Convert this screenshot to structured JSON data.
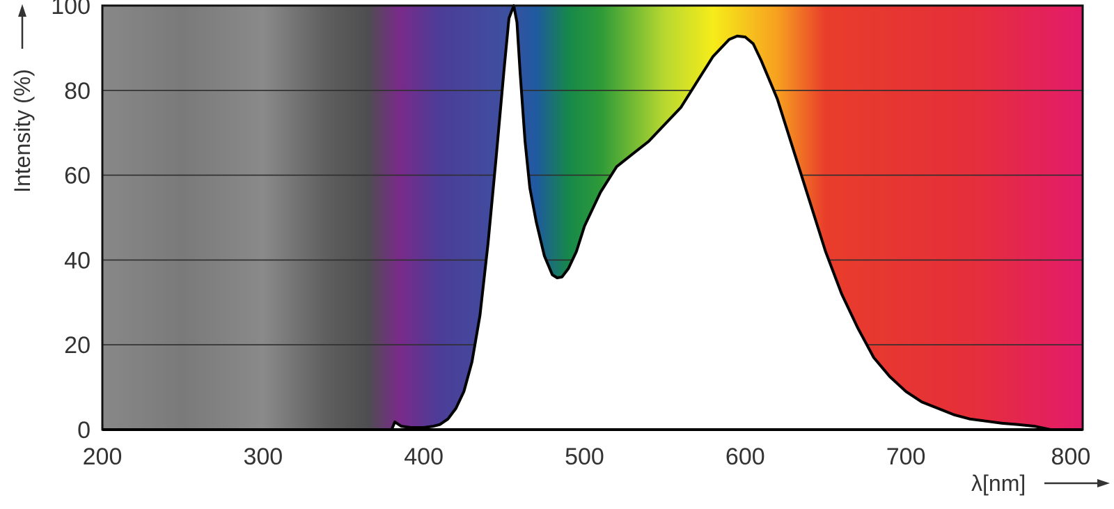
{
  "chart_data": {
    "type": "area",
    "title": "",
    "xlabel": "λ[nm]",
    "ylabel": "Intensity (%)",
    "xlim": [
      200,
      810
    ],
    "ylim": [
      0,
      100
    ],
    "x_ticks": [
      200,
      300,
      400,
      500,
      600,
      700,
      800
    ],
    "y_ticks": [
      0,
      20,
      40,
      60,
      80,
      100
    ],
    "grid": "horizontal",
    "legend": "none",
    "background": "visible-spectrum color band by wavelength",
    "spectrum_colors": [
      {
        "nm": 200,
        "color": "#888888"
      },
      {
        "nm": 250,
        "color": "#7a7a7a"
      },
      {
        "nm": 300,
        "color": "#8a8a8a"
      },
      {
        "nm": 340,
        "color": "#5e5e5e"
      },
      {
        "nm": 365,
        "color": "#4e4e50"
      },
      {
        "nm": 385,
        "color": "#7a2a8a"
      },
      {
        "nm": 410,
        "color": "#4b3d98"
      },
      {
        "nm": 450,
        "color": "#3f4fa0"
      },
      {
        "nm": 470,
        "color": "#1f5aa0"
      },
      {
        "nm": 490,
        "color": "#16884a"
      },
      {
        "nm": 510,
        "color": "#2d9a38"
      },
      {
        "nm": 550,
        "color": "#b8d830"
      },
      {
        "nm": 580,
        "color": "#f6ec1a"
      },
      {
        "nm": 620,
        "color": "#f7a020"
      },
      {
        "nm": 650,
        "color": "#e83d2b"
      },
      {
        "nm": 740,
        "color": "#e52f3a"
      },
      {
        "nm": 810,
        "color": "#e31b6a"
      }
    ],
    "series": [
      {
        "x": [
          380,
          382,
          386,
          392,
          400,
          406,
          410,
          415,
          420,
          425,
          430,
          435,
          440,
          445,
          450,
          453,
          456,
          458,
          460,
          463,
          466,
          470,
          475,
          480,
          483,
          486,
          490,
          495,
          500,
          505,
          510,
          520,
          530,
          540,
          550,
          560,
          570,
          580,
          590,
          595,
          600,
          605,
          610,
          620,
          630,
          640,
          650,
          660,
          670,
          680,
          690,
          700,
          710,
          720,
          730,
          740,
          750,
          760,
          770,
          780,
          785,
          790
        ],
        "y": [
          0,
          1.8,
          0.8,
          0.5,
          0.5,
          0.8,
          1.2,
          2.5,
          5,
          9,
          16,
          27,
          44,
          64,
          85,
          97,
          100,
          96,
          84,
          68,
          57,
          49,
          41,
          36.5,
          35.8,
          36,
          38,
          42,
          48,
          52,
          56,
          62,
          65,
          68,
          72,
          76,
          82,
          88,
          92,
          92.8,
          92.6,
          91,
          87,
          78,
          66,
          54,
          42,
          32,
          24,
          17,
          12.5,
          9,
          6.5,
          5,
          3.5,
          2.5,
          2,
          1.5,
          1.2,
          0.8,
          0.4,
          0
        ]
      }
    ]
  }
}
